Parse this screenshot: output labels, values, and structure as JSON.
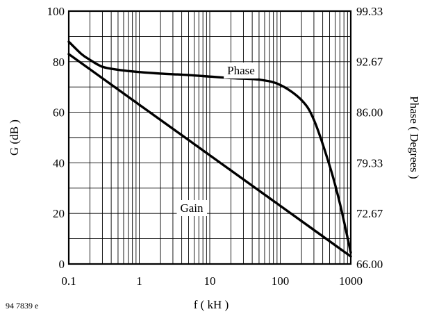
{
  "figure_id": "94 7839 e",
  "chart_data": {
    "type": "line",
    "xlabel": "f ( kH )",
    "ylabel_left": "G (dB )",
    "ylabel_right": "Phase ( Degrees )",
    "x_scale": "log",
    "xlim": [
      0.1,
      1000
    ],
    "ylim_left": [
      0,
      100
    ],
    "ylim_right": [
      66.0,
      99.33
    ],
    "x_ticks": [
      0.1,
      1,
      10,
      100,
      1000
    ],
    "x_tick_labels": [
      "0.1",
      "1",
      "10",
      "100",
      "1000"
    ],
    "y_ticks_left": [
      0,
      20,
      40,
      60,
      80,
      100
    ],
    "y_tick_labels_left": [
      "0",
      "20",
      "40",
      "60",
      "80",
      "100"
    ],
    "y_ticks_right": [
      66.0,
      72.67,
      79.33,
      86.0,
      92.67,
      99.33
    ],
    "y_tick_labels_right": [
      "66.00",
      "72.67",
      "79.33",
      "86.00",
      "92.67",
      "99.33"
    ],
    "grid": true,
    "series": [
      {
        "name": "Gain",
        "axis": "left",
        "x": [
          0.1,
          1,
          10,
          100,
          1000
        ],
        "y": [
          83,
          63,
          43,
          23,
          3
        ]
      },
      {
        "name": "Phase",
        "axis": "right",
        "x": [
          0.1,
          0.15,
          0.2,
          0.3,
          0.5,
          1,
          2,
          5,
          10,
          20,
          50,
          100,
          200,
          300,
          500,
          700,
          1000
        ],
        "y": [
          95.3,
          93.7,
          92.9,
          92.0,
          91.6,
          91.3,
          91.1,
          90.9,
          90.7,
          90.5,
          90.3,
          89.6,
          87.6,
          85.0,
          79.0,
          74.0,
          67.5
        ]
      }
    ]
  }
}
